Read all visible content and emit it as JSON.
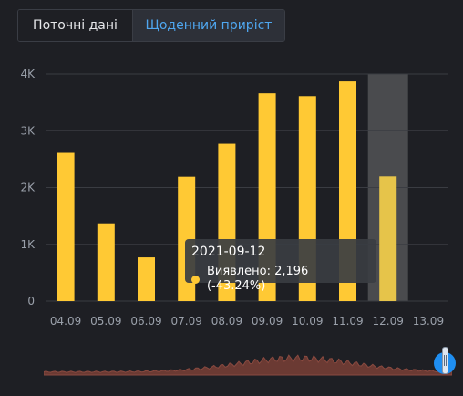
{
  "tabs": [
    {
      "label": "Поточні дані",
      "active": false
    },
    {
      "label": "Щоденний приріст",
      "active": true
    }
  ],
  "colors": {
    "bar": "#ffc934",
    "bar_highlight": "#e6c44a",
    "accent": "#4fa7f0",
    "background": "#1e1f24",
    "grid": "#3a3c42"
  },
  "chart_data": {
    "type": "bar",
    "categories": [
      "04.09",
      "05.09",
      "06.09",
      "07.09",
      "08.09",
      "09.09",
      "10.09",
      "11.09",
      "12.09",
      "13.09"
    ],
    "series": [
      {
        "name": "Виявлено",
        "values": [
          2610,
          1370,
          770,
          2190,
          2770,
          3660,
          3610,
          3870,
          2196,
          null
        ]
      }
    ],
    "y_ticks": [
      "0",
      "1K",
      "2K",
      "3K",
      "4K"
    ],
    "ylim": [
      0,
      4000
    ],
    "grid": true,
    "highlighted_category": "12.09"
  },
  "tooltip": {
    "date": "2021-09-12",
    "text": "Виявлено: 2,196 (-43.24%)"
  }
}
